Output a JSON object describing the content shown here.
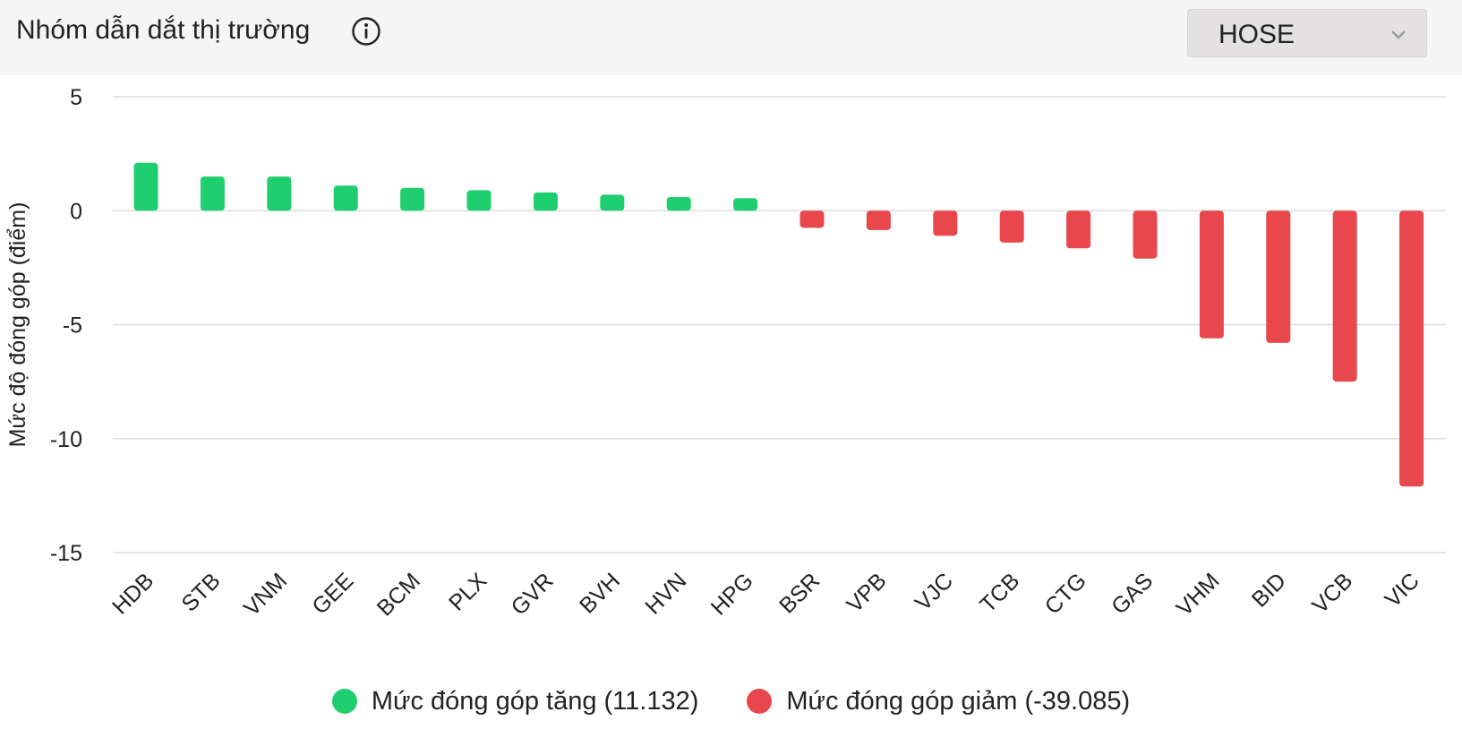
{
  "header": {
    "title": "Nhóm dẫn dắt thị trường",
    "info_icon": "info-circle-icon",
    "exchange_select": {
      "value": "HOSE",
      "icon": "chevron-down-icon"
    }
  },
  "colors": {
    "positive": "#1fcf6f",
    "negative": "#e8474b",
    "grid": "#dddddd",
    "header_bg": "#f5f5f5"
  },
  "legend": {
    "positive_label": "Mức đóng góp tăng (11.132)",
    "negative_label": "Mức đóng góp giảm (-39.085)"
  },
  "chart_data": {
    "type": "bar",
    "ylabel": "Mức độ đóng góp (điểm)",
    "ylim": [
      -15,
      5
    ],
    "yticks": [
      5,
      0,
      -5,
      -10,
      -15
    ],
    "grid": true,
    "legend_position": "bottom",
    "categories": [
      "HDB",
      "STB",
      "VNM",
      "GEE",
      "BCM",
      "PLX",
      "GVR",
      "BVH",
      "HVN",
      "HPG",
      "BSR",
      "VPB",
      "VJC",
      "TCB",
      "CTG",
      "GAS",
      "VHM",
      "BID",
      "VCB",
      "VIC"
    ],
    "series": [
      {
        "name": "Mức đóng góp tăng (11.132)",
        "values": [
          2.1,
          1.5,
          1.5,
          1.1,
          1.0,
          0.9,
          0.8,
          0.7,
          0.6,
          0.55,
          null,
          null,
          null,
          null,
          null,
          null,
          null,
          null,
          null,
          null
        ]
      },
      {
        "name": "Mức đóng góp giảm (-39.085)",
        "values": [
          null,
          null,
          null,
          null,
          null,
          null,
          null,
          null,
          null,
          null,
          -0.75,
          -0.85,
          -1.1,
          -1.4,
          -1.65,
          -2.1,
          -5.6,
          -5.8,
          -7.5,
          -12.1
        ]
      }
    ]
  }
}
